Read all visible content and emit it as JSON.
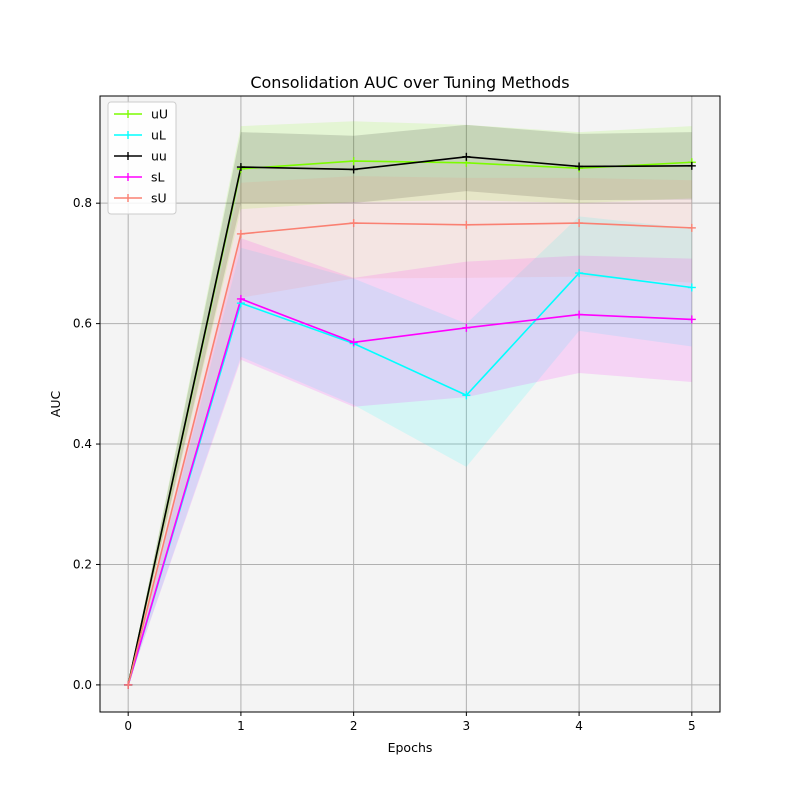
{
  "chart_data": {
    "type": "line",
    "title": "Consolidation AUC over Tuning Methods",
    "xlabel": "Epochs",
    "ylabel": "AUC",
    "x": [
      0,
      1,
      2,
      3,
      4,
      5
    ],
    "xlim": [
      -0.25,
      5.25
    ],
    "ylim": [
      -0.045,
      0.978
    ],
    "xticks": [
      "0",
      "1",
      "2",
      "3",
      "4",
      "5"
    ],
    "yticks": [
      {
        "value": 0.0,
        "label": "0.0"
      },
      {
        "value": 0.2,
        "label": "0.2"
      },
      {
        "value": 0.4,
        "label": "0.4"
      },
      {
        "value": 0.6,
        "label": "0.6"
      },
      {
        "value": 0.8,
        "label": "0.8"
      }
    ],
    "grid": true,
    "legend_position": "top-left",
    "series": [
      {
        "name": "uU",
        "color": "#7cfc00",
        "values": [
          0,
          0.857,
          0.87,
          0.867,
          0.858,
          0.868
        ],
        "band_low": [
          0,
          0.79,
          0.802,
          0.805,
          0.8,
          0.808
        ],
        "band_high": [
          0,
          0.928,
          0.936,
          0.93,
          0.918,
          0.928
        ]
      },
      {
        "name": "uL",
        "color": "#00ffff",
        "values": [
          0,
          0.634,
          0.567,
          0.481,
          0.684,
          0.66
        ],
        "band_low": [
          0,
          0.545,
          0.465,
          0.362,
          0.588,
          0.562
        ],
        "band_high": [
          0,
          0.726,
          0.675,
          0.6,
          0.778,
          0.758
        ]
      },
      {
        "name": "uu",
        "color": "#000000",
        "values": [
          0,
          0.86,
          0.856,
          0.877,
          0.861,
          0.862
        ],
        "band_low": [
          0,
          0.8,
          0.8,
          0.82,
          0.805,
          0.806
        ],
        "band_high": [
          0,
          0.918,
          0.912,
          0.93,
          0.915,
          0.918
        ]
      },
      {
        "name": "sL",
        "color": "#ff00ff",
        "values": [
          0,
          0.641,
          0.569,
          0.593,
          0.615,
          0.607
        ],
        "band_low": [
          0,
          0.54,
          0.462,
          0.478,
          0.518,
          0.503
        ],
        "band_high": [
          0,
          0.742,
          0.676,
          0.703,
          0.713,
          0.708
        ]
      },
      {
        "name": "sU",
        "color": "#fa8072",
        "values": [
          0,
          0.749,
          0.767,
          0.764,
          0.767,
          0.759
        ],
        "band_low": [
          0,
          0.643,
          0.675,
          0.676,
          0.678,
          0.668
        ],
        "band_high": [
          0,
          0.834,
          0.845,
          0.842,
          0.842,
          0.838
        ]
      }
    ]
  }
}
